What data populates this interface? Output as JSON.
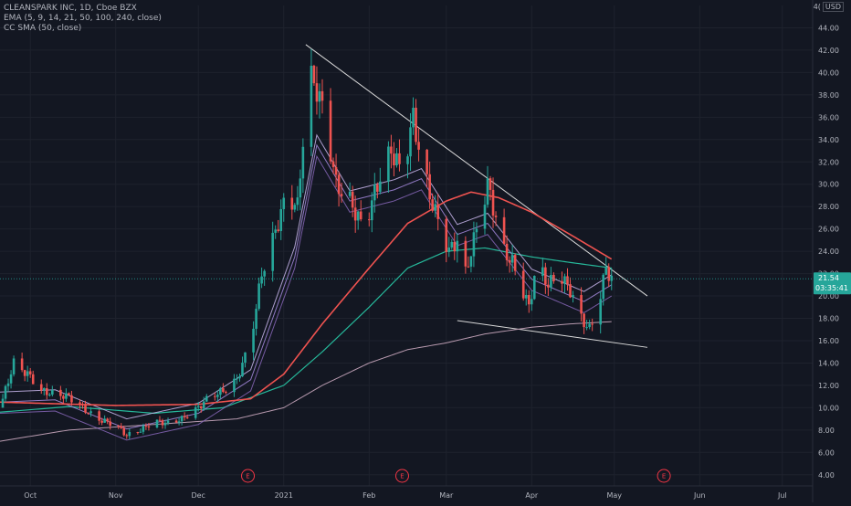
{
  "legend": {
    "symbol_line": "CLEANSPARK INC, 1D, Cboe BZX",
    "ema_line": "EMA (5, 9, 14, 21, 50, 100, 240, close)",
    "sma_line": "CC SMA (50, close)"
  },
  "top_right": {
    "prefix": "4(",
    "currency": "USD"
  },
  "price_badge": {
    "price": "21.54",
    "countdown": "03:35:41"
  },
  "earnings_marker_label": "E",
  "colors": {
    "background": "#131722",
    "up": "#26a69a",
    "down": "#ef5350",
    "sma": "#ef5350",
    "ema_fast": "#a78bdf",
    "ema_slow": "#8e6bc2",
    "ema100": "#26b89a",
    "ema240": "#b89aaf",
    "trendline": "#d9d9d9",
    "badge": "#26a69a"
  },
  "chart_data": {
    "type": "candlestick",
    "title": "CLEANSPARK INC, 1D, Cboe BZX",
    "yaxis_ticks": [
      "4.00",
      "6.00",
      "8.00",
      "10.00",
      "12.00",
      "14.00",
      "16.00",
      "18.00",
      "20.00",
      "22.00",
      "24.00",
      "26.00",
      "28.00",
      "30.00",
      "32.00",
      "34.00",
      "36.00",
      "38.00",
      "40.00",
      "42.00",
      "44.00"
    ],
    "ylim": [
      3,
      46
    ],
    "xaxis_ticks": [
      {
        "label": "Oct",
        "date": "2020-10-01"
      },
      {
        "label": "Nov",
        "date": "2020-11-01"
      },
      {
        "label": "Dec",
        "date": "2020-12-01"
      },
      {
        "label": "2021",
        "date": "2021-01-01"
      },
      {
        "label": "Feb",
        "date": "2021-02-01"
      },
      {
        "label": "Mar",
        "date": "2021-03-01"
      },
      {
        "label": "Apr",
        "date": "2021-04-01"
      },
      {
        "label": "May",
        "date": "2021-05-01"
      },
      {
        "label": "Jun",
        "date": "2021-06-01"
      },
      {
        "label": "Jul",
        "date": "2021-07-01"
      }
    ],
    "xlim": [
      "2020-09-20",
      "2021-07-12"
    ],
    "last_price": 21.54,
    "ohlc_keypoints": [
      [
        "2020-09-20",
        10.0
      ],
      [
        "2020-09-25",
        14.0
      ],
      [
        "2020-10-01",
        12.8
      ],
      [
        "2020-10-05",
        11.5
      ],
      [
        "2020-10-10",
        11.2
      ],
      [
        "2020-10-15",
        11.0
      ],
      [
        "2020-10-20",
        10.0
      ],
      [
        "2020-10-25",
        9.0
      ],
      [
        "2020-11-01",
        8.5
      ],
      [
        "2020-11-05",
        7.5
      ],
      [
        "2020-11-10",
        8.0
      ],
      [
        "2020-11-15",
        8.8
      ],
      [
        "2020-11-20",
        8.6
      ],
      [
        "2020-11-25",
        9.0
      ],
      [
        "2020-12-01",
        10.0
      ],
      [
        "2020-12-05",
        11.0
      ],
      [
        "2020-12-10",
        11.5
      ],
      [
        "2020-12-15",
        12.5
      ],
      [
        "2020-12-20",
        16.0
      ],
      [
        "2020-12-24",
        22.0
      ],
      [
        "2020-12-28",
        25.0
      ],
      [
        "2021-01-02",
        29.0
      ],
      [
        "2021-01-06",
        28.0
      ],
      [
        "2021-01-10",
        40.0
      ],
      [
        "2021-01-13",
        38.5
      ],
      [
        "2021-01-16",
        36.0
      ],
      [
        "2021-01-20",
        30.0
      ],
      [
        "2021-01-25",
        28.5
      ],
      [
        "2021-01-30",
        26.0
      ],
      [
        "2021-02-04",
        30.0
      ],
      [
        "2021-02-09",
        33.0
      ],
      [
        "2021-02-13",
        31.0
      ],
      [
        "2021-02-17",
        36.0
      ],
      [
        "2021-02-20",
        32.0
      ],
      [
        "2021-02-23",
        29.0
      ],
      [
        "2021-02-27",
        26.0
      ],
      [
        "2021-03-02",
        24.0
      ],
      [
        "2021-03-05",
        25.0
      ],
      [
        "2021-03-08",
        22.0
      ],
      [
        "2021-03-12",
        26.0
      ],
      [
        "2021-03-16",
        30.0
      ],
      [
        "2021-03-19",
        27.0
      ],
      [
        "2021-03-22",
        24.0
      ],
      [
        "2021-03-25",
        23.0
      ],
      [
        "2021-03-28",
        21.0
      ],
      [
        "2021-03-31",
        19.0
      ],
      [
        "2021-04-03",
        23.0
      ],
      [
        "2021-04-07",
        21.0
      ],
      [
        "2021-04-11",
        22.0
      ],
      [
        "2021-04-15",
        20.5
      ],
      [
        "2021-04-19",
        18.0
      ],
      [
        "2021-04-22",
        17.0
      ],
      [
        "2021-04-25",
        19.0
      ],
      [
        "2021-04-28",
        22.5
      ],
      [
        "2021-04-30",
        21.5
      ]
    ],
    "sma50_keypoints": [
      [
        "2020-09-20",
        10.5
      ],
      [
        "2020-11-01",
        10.2
      ],
      [
        "2020-12-01",
        10.3
      ],
      [
        "2020-12-20",
        10.8
      ],
      [
        "2021-01-01",
        13.0
      ],
      [
        "2021-01-15",
        17.5
      ],
      [
        "2021-02-01",
        22.5
      ],
      [
        "2021-02-15",
        26.5
      ],
      [
        "2021-03-01",
        28.5
      ],
      [
        "2021-03-10",
        29.3
      ],
      [
        "2021-03-20",
        28.8
      ],
      [
        "2021-04-01",
        27.5
      ],
      [
        "2021-04-15",
        25.5
      ],
      [
        "2021-04-30",
        23.3
      ]
    ],
    "ema100_keypoints": [
      [
        "2020-09-20",
        9.6
      ],
      [
        "2020-10-15",
        10.1
      ],
      [
        "2020-11-15",
        9.5
      ],
      [
        "2020-12-10",
        10.0
      ],
      [
        "2021-01-01",
        12.0
      ],
      [
        "2021-01-15",
        15.0
      ],
      [
        "2021-02-01",
        19.0
      ],
      [
        "2021-02-15",
        22.5
      ],
      [
        "2021-03-01",
        24.0
      ],
      [
        "2021-03-15",
        24.3
      ],
      [
        "2021-04-01",
        23.5
      ],
      [
        "2021-04-15",
        23.0
      ],
      [
        "2021-04-30",
        22.5
      ]
    ],
    "ema240_keypoints": [
      [
        "2020-09-20",
        7.0
      ],
      [
        "2020-10-15",
        8.0
      ],
      [
        "2020-11-15",
        8.5
      ],
      [
        "2020-12-15",
        9.0
      ],
      [
        "2021-01-01",
        10.0
      ],
      [
        "2021-01-15",
        12.0
      ],
      [
        "2021-02-01",
        14.0
      ],
      [
        "2021-02-15",
        15.2
      ],
      [
        "2021-03-01",
        15.8
      ],
      [
        "2021-03-15",
        16.6
      ],
      [
        "2021-04-01",
        17.2
      ],
      [
        "2021-04-15",
        17.5
      ],
      [
        "2021-04-30",
        17.7
      ]
    ],
    "ema_group_keypoints": [
      [
        "2020-09-20",
        11.0
      ],
      [
        "2020-10-10",
        11.2
      ],
      [
        "2020-11-05",
        8.6
      ],
      [
        "2020-12-01",
        10.0
      ],
      [
        "2020-12-20",
        13.0
      ],
      [
        "2021-01-05",
        24.0
      ],
      [
        "2021-01-13",
        34.0
      ],
      [
        "2021-01-25",
        29.0
      ],
      [
        "2021-02-10",
        30.0
      ],
      [
        "2021-02-20",
        31.0
      ],
      [
        "2021-03-05",
        26.0
      ],
      [
        "2021-03-16",
        27.0
      ],
      [
        "2021-04-01",
        22.0
      ],
      [
        "2021-04-20",
        20.0
      ],
      [
        "2021-04-30",
        21.5
      ]
    ],
    "upper_trendline": [
      [
        "2021-01-09",
        42.5
      ],
      [
        "2021-05-13",
        20.0
      ]
    ],
    "lower_trendline": [
      [
        "2021-03-05",
        17.8
      ],
      [
        "2021-05-13",
        15.4
      ]
    ],
    "earnings_dates": [
      "2020-12-19",
      "2021-02-13",
      "2021-05-19"
    ]
  }
}
